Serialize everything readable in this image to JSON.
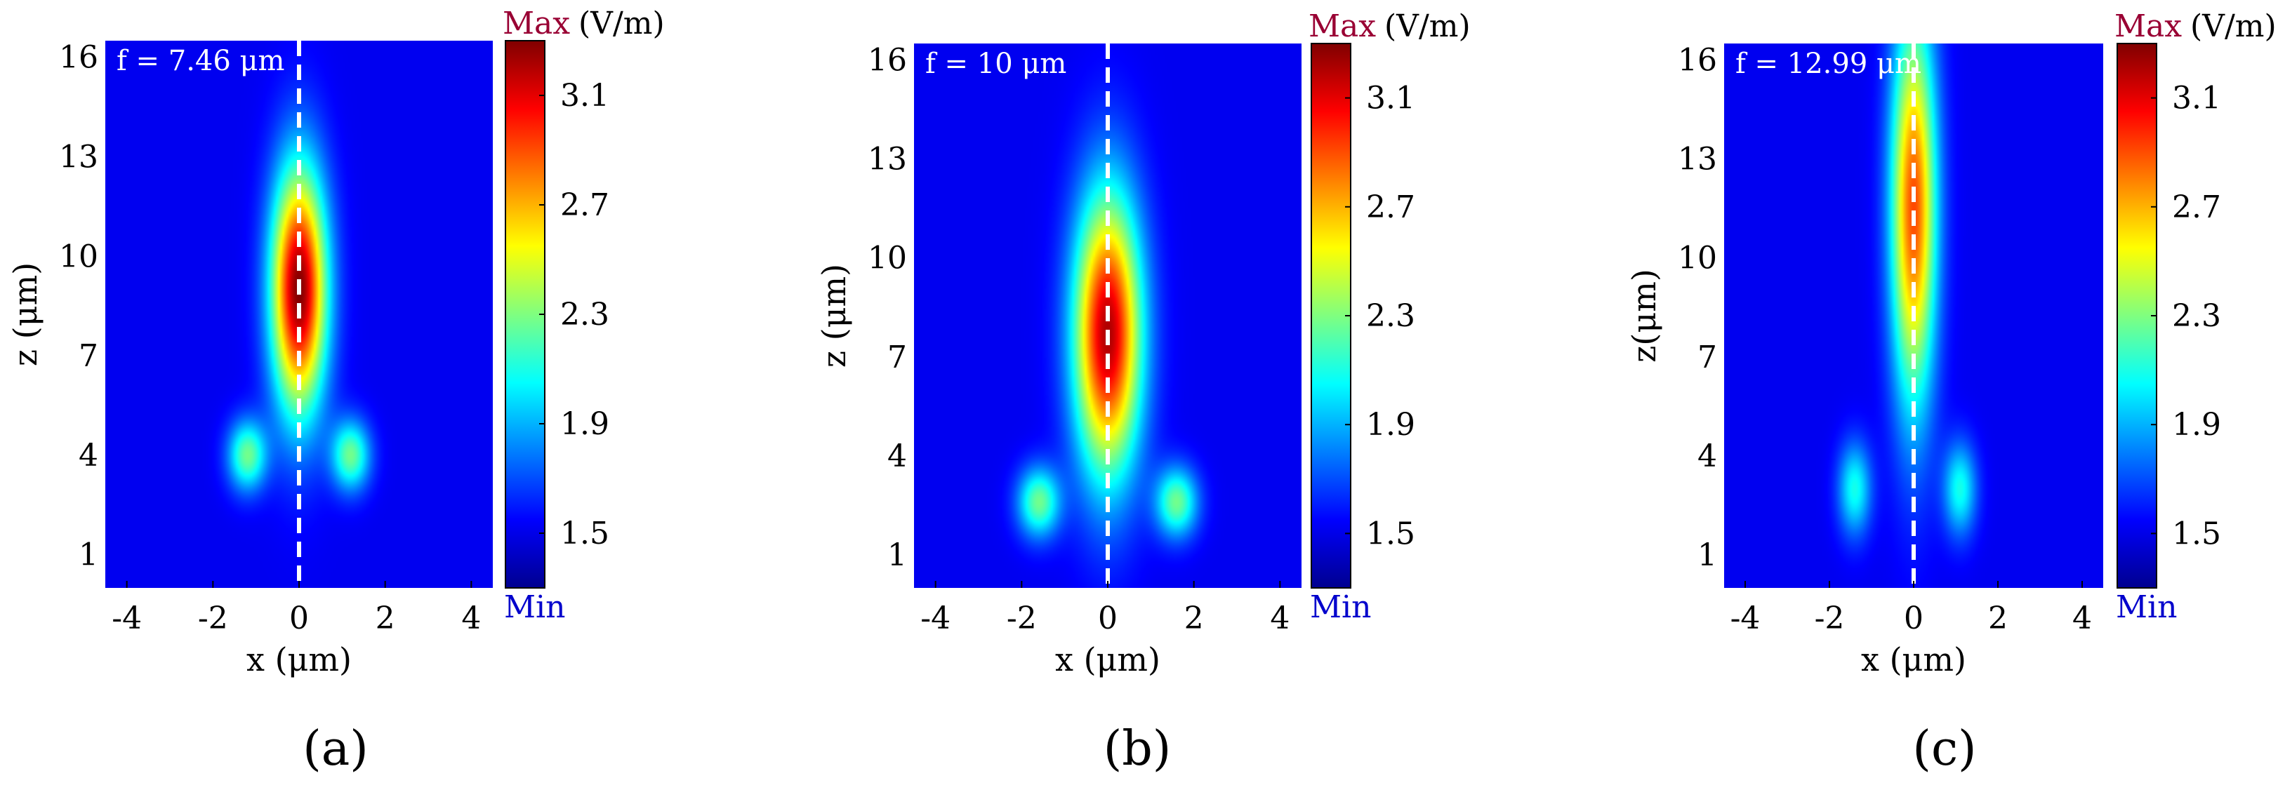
{
  "chart_data": [
    {
      "type": "heatmap",
      "panel_label": "(a)",
      "annotation": "f = 7.46 μm",
      "xlabel": "x (μm)",
      "ylabel": "z (μm)",
      "xlim": [
        -4.5,
        4.5
      ],
      "ylim": [
        0,
        16.5
      ],
      "x_ticks": [
        -4,
        -2,
        0,
        2,
        4
      ],
      "x_tick_labels": [
        "-4",
        "-2",
        "0",
        "2",
        "4"
      ],
      "y_ticks": [
        1,
        4,
        7,
        10,
        13,
        16
      ],
      "y_tick_labels": [
        "1",
        "4",
        "7",
        "10",
        "13",
        "16"
      ],
      "colorbar": {
        "max_label": "Max",
        "min_label": "Min",
        "unit": "(V/m)",
        "range": [
          1.3,
          3.3
        ],
        "ticks": [
          3.1,
          2.7,
          2.3,
          1.9,
          1.5
        ],
        "tick_labels": [
          "3.1",
          "2.7",
          "2.3",
          "1.9",
          "1.5"
        ]
      },
      "focus_line_x": 0,
      "field": {
        "main_lobe": {
          "x": 0,
          "z": 9,
          "sigma_x": 0.45,
          "sigma_z": 2.6,
          "peak": 1.0
        },
        "side_lobes": {
          "x": [
            -1.2,
            1.2
          ],
          "z": 4,
          "sigma_x": 0.32,
          "sigma_z": 0.75,
          "peak": 0.42
        }
      }
    },
    {
      "type": "heatmap",
      "panel_label": "(b)",
      "annotation": "f = 10 μm",
      "xlabel": "x (μm)",
      "ylabel": "z (μm)",
      "xlim": [
        -4.5,
        4.5
      ],
      "ylim": [
        0,
        16.5
      ],
      "x_ticks": [
        -4,
        -2,
        0,
        2,
        4
      ],
      "x_tick_labels": [
        "-4",
        "-2",
        "0",
        "2",
        "4"
      ],
      "y_ticks": [
        1,
        4,
        7,
        10,
        13,
        16
      ],
      "y_tick_labels": [
        "1",
        "4",
        "7",
        "10",
        "13",
        "16"
      ],
      "colorbar": {
        "max_label": "Max",
        "min_label": "Min",
        "unit": "(V/m)",
        "range": [
          1.3,
          3.3
        ],
        "ticks": [
          3.1,
          2.7,
          2.3,
          1.9,
          1.5
        ],
        "tick_labels": [
          "3.1",
          "2.7",
          "2.3",
          "1.9",
          "1.5"
        ]
      },
      "focus_line_x": 0,
      "field": {
        "main_lobe": {
          "x": 0,
          "z": 7.7,
          "sigma_x": 0.55,
          "sigma_z": 3.0,
          "peak": 0.95
        },
        "side_lobes": {
          "x": [
            -1.6,
            1.6
          ],
          "z": 2.6,
          "sigma_x": 0.35,
          "sigma_z": 0.75,
          "peak": 0.42
        }
      }
    },
    {
      "type": "heatmap",
      "panel_label": "(c)",
      "annotation": "f = 12.99 μm",
      "xlabel": "x (μm)",
      "ylabel": "z(μm)",
      "xlim": [
        -4.5,
        4.5
      ],
      "ylim": [
        0,
        16.5
      ],
      "x_ticks": [
        -4,
        -2,
        0,
        2,
        4
      ],
      "x_tick_labels": [
        "-4",
        "-2",
        "0",
        "2",
        "4"
      ],
      "y_ticks": [
        1,
        4,
        7,
        10,
        13,
        16
      ],
      "y_tick_labels": [
        "1",
        "4",
        "7",
        "10",
        "13",
        "16"
      ],
      "colorbar": {
        "max_label": "Max",
        "min_label": "Min",
        "unit": "(V/m)",
        "range": [
          1.3,
          3.3
        ],
        "ticks": [
          3.1,
          2.7,
          2.3,
          1.9,
          1.5
        ],
        "tick_labels": [
          "3.1",
          "2.7",
          "2.3",
          "1.9",
          "1.5"
        ]
      },
      "focus_line_x": 0,
      "field": {
        "main_lobe": {
          "x": 0,
          "z": 11.5,
          "sigma_x": 0.38,
          "sigma_z": 4.2,
          "peak": 0.78
        },
        "side_lobes": {
          "x": [
            -1.4,
            1.1
          ],
          "z": 3,
          "sigma_x": 0.28,
          "sigma_z": 1.0,
          "peak": 0.32
        }
      }
    }
  ],
  "colors": {
    "max_label": "#990033",
    "min_label": "#0000cc",
    "background_field": "#00008f",
    "focus_line": "#ffffff"
  }
}
